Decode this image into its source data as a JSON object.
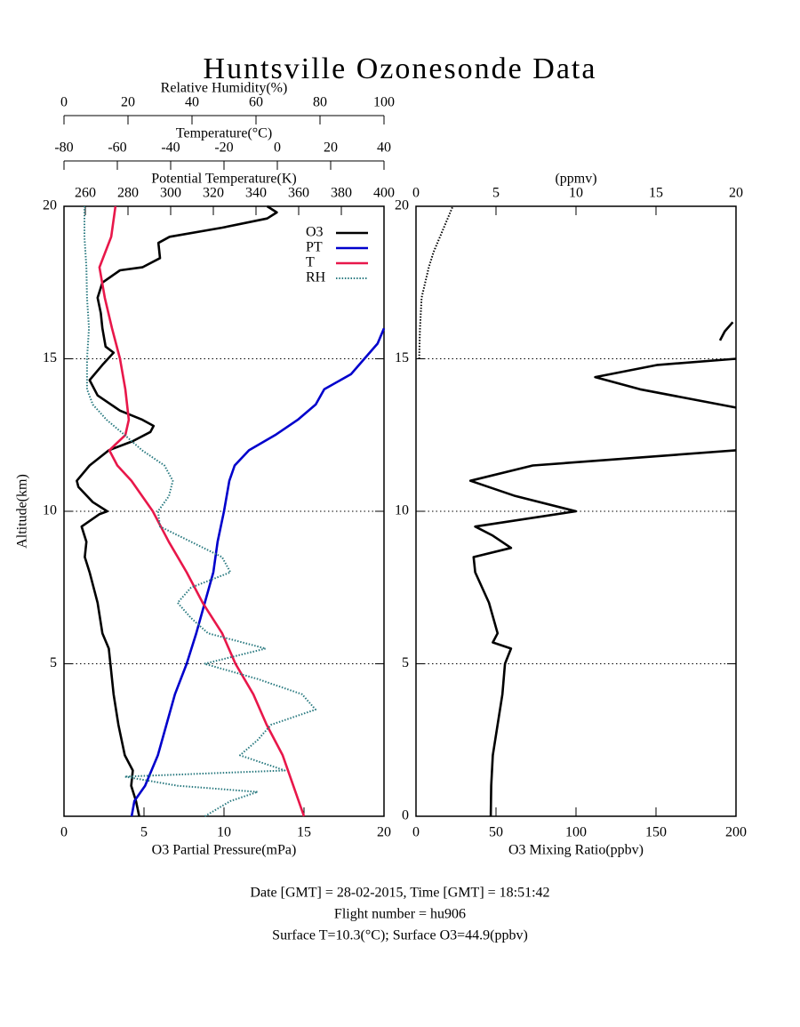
{
  "title": "Huntsville Ozonesonde Data",
  "footer": [
    "Date [GMT] = 28-02-2015,  Time [GMT] = 18:51:42",
    "Flight number = hu906",
    "Surface T=10.3(°C); Surface O3=44.9(ppbv)"
  ],
  "chart_data": [
    {
      "type": "line",
      "ylabel": "Altitude(km)",
      "ylim": [
        0,
        20
      ],
      "yticks": [
        5,
        10,
        15,
        20
      ],
      "grid": true,
      "legend": "top-right",
      "axes": [
        {
          "label": "O3 Partial Pressure(mPa)",
          "position": "bottom",
          "lim": [
            0,
            20
          ],
          "ticks": [
            0,
            5,
            10,
            15,
            20
          ]
        },
        {
          "label": "Potential Temperature(K)",
          "position": "top",
          "lim": [
            250,
            400
          ],
          "ticks": [
            260,
            280,
            300,
            320,
            340,
            360,
            380,
            400
          ]
        },
        {
          "label": "Temperature(°C)",
          "position": "top",
          "lim": [
            -80,
            40
          ],
          "ticks": [
            -80,
            -60,
            -40,
            -20,
            0,
            20,
            40
          ]
        },
        {
          "label": "Relative Humidity(%)",
          "position": "top",
          "lim": [
            0,
            100
          ],
          "ticks": [
            0,
            20,
            40,
            60,
            80,
            100
          ]
        }
      ],
      "series": [
        {
          "name": "O3",
          "color": "#000000",
          "axis": 0,
          "style": "solid",
          "altitude": [
            0,
            0.5,
            1,
            1.5,
            2,
            3,
            4,
            5,
            5.5,
            6,
            7,
            8,
            8.5,
            9,
            9.5,
            9.9,
            10,
            10.3,
            10.8,
            11,
            11.5,
            12,
            12.3,
            12.6,
            12.8,
            13,
            13.3,
            13.8,
            14.3,
            14.8,
            15.2,
            15.4,
            16,
            16.5,
            17,
            17.5,
            17.9,
            18,
            18.3,
            18.8,
            19,
            19.3,
            19.6,
            19.8,
            20
          ],
          "values": [
            4.7,
            4.5,
            4.2,
            4.3,
            3.8,
            3.4,
            3.1,
            2.9,
            2.8,
            2.4,
            2.1,
            1.6,
            1.3,
            1.4,
            1.1,
            2.2,
            2.7,
            1.8,
            0.9,
            0.8,
            1.6,
            2.8,
            4.3,
            5.4,
            5.6,
            4.9,
            3.5,
            2.1,
            1.6,
            2.4,
            3.1,
            2.6,
            2.4,
            2.3,
            2.1,
            2.4,
            3.5,
            4.9,
            6.0,
            5.9,
            6.6,
            9.9,
            12.7,
            13.3,
            12.7
          ]
        },
        {
          "name": "PT",
          "color": "#0000cc",
          "axis": 1,
          "style": "solid",
          "altitude": [
            0,
            0.5,
            1,
            2,
            3,
            4,
            5,
            6,
            7,
            8,
            9,
            10,
            11,
            11.5,
            12,
            12.5,
            13,
            13.5,
            14,
            14.5,
            15,
            15.5,
            16
          ],
          "values": [
            281.7,
            283,
            288,
            294,
            298,
            302,
            307.5,
            312,
            316,
            320,
            322,
            325,
            327.5,
            330,
            336.7,
            349,
            359.6,
            368,
            372,
            384.6,
            390.8,
            397,
            400
          ]
        },
        {
          "name": "T",
          "color": "#e8174a",
          "axis": 2,
          "style": "solid",
          "altitude": [
            0,
            1,
            2,
            3,
            4,
            5,
            6,
            7,
            8,
            9,
            10,
            11,
            11.5,
            12,
            12.5,
            13,
            14,
            15,
            16,
            17,
            18,
            19,
            20
          ],
          "values": [
            10,
            6,
            2,
            -4,
            -9,
            -15.7,
            -20.7,
            -28,
            -34,
            -40.7,
            -46.7,
            -54.7,
            -60,
            -63,
            -57,
            -55.7,
            -57,
            -59,
            -62,
            -64.7,
            -66.7,
            -62.3,
            -60.7
          ]
        },
        {
          "name": "RH",
          "color": "#2a7a80",
          "axis": 3,
          "style": "dotted",
          "altitude": [
            0,
            0.5,
            0.8,
            1,
            1.3,
            1.5,
            2,
            2.5,
            3,
            3.5,
            4,
            4.5,
            5,
            5.5,
            6,
            6.5,
            7,
            7.5,
            8,
            8.5,
            9,
            9.5,
            10,
            10.5,
            11,
            11.5,
            12,
            12.5,
            13,
            13.5,
            14,
            15,
            16,
            17,
            18,
            19,
            20
          ],
          "values": [
            44,
            52,
            60.5,
            35.5,
            19,
            69,
            55,
            60.5,
            64.7,
            78.6,
            74.4,
            60.5,
            43.9,
            63,
            45,
            39.7,
            35.5,
            39.7,
            52,
            49.4,
            39.7,
            30,
            29.4,
            32.8,
            34,
            31.4,
            24.4,
            19,
            13.3,
            9,
            7.2,
            7.2,
            7.8,
            7.2,
            7,
            6.4,
            6.4
          ]
        }
      ]
    },
    {
      "type": "line",
      "ylim": [
        0,
        20
      ],
      "yticks": [
        0,
        5,
        10,
        15,
        20
      ],
      "grid": true,
      "axes": [
        {
          "label": "O3 Mixing Ratio(ppbv)",
          "position": "bottom",
          "lim": [
            0,
            200
          ],
          "ticks": [
            0,
            50,
            100,
            150,
            200
          ]
        },
        {
          "label": "(ppmv)",
          "position": "top",
          "lim": [
            0,
            20
          ],
          "ticks": [
            0,
            5,
            10,
            15,
            20
          ]
        }
      ],
      "series": [
        {
          "color": "#000000",
          "axis": 0,
          "style": "solid",
          "altitude": [
            0,
            1,
            2,
            3,
            4,
            5,
            5.5,
            5.7,
            6,
            7,
            8,
            8.5,
            8.8,
            9.2,
            9.5,
            10,
            10.5,
            11,
            11.5,
            12,
            12.7,
            13.4,
            14,
            14.4,
            14.8,
            15,
            15.3,
            15.6,
            15.9,
            16.2
          ],
          "values": [
            46.7,
            47,
            48,
            51,
            54,
            55.6,
            59.4,
            48,
            51,
            45.6,
            37,
            36,
            59.4,
            48,
            37,
            100,
            62,
            34,
            73,
            200,
            null,
            200,
            140,
            112,
            151,
            200,
            null,
            190,
            193,
            198
          ]
        },
        {
          "color": "#000000",
          "axis": 1,
          "style": "dotted",
          "altitude": [
            15,
            15.5,
            16,
            17,
            18,
            18.5,
            19,
            19.5,
            20
          ],
          "values": [
            0.2,
            0.22,
            0.25,
            0.35,
            0.8,
            1.1,
            1.5,
            1.9,
            2.3
          ]
        }
      ]
    }
  ]
}
